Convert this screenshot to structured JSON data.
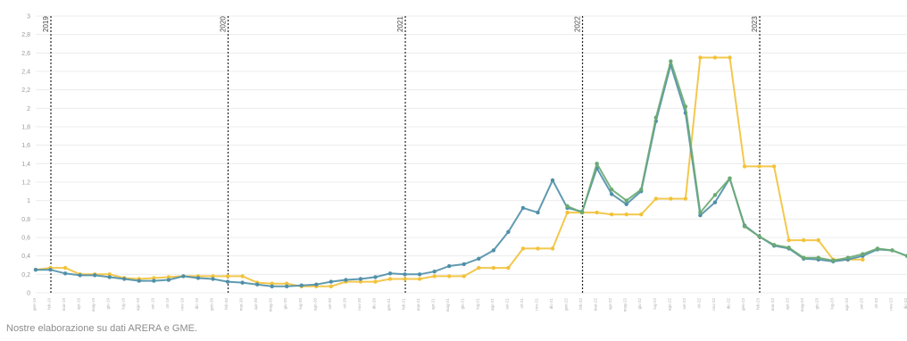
{
  "source_note": "Nostre elaborazione su dati ARERA e GME.",
  "colors": {
    "series_blue": "#4f8fa8",
    "series_green": "#6aaa73",
    "series_yellow": "#f2c23a",
    "gridline": "#ececec",
    "year_marker": "#222222"
  },
  "chart_data": {
    "type": "line",
    "title": "",
    "xlabel": "",
    "ylabel": "",
    "ylim": [
      0,
      3
    ],
    "yticks": [
      0,
      0.2,
      0.4,
      0.6,
      0.8,
      1,
      1.2,
      1.4,
      1.6,
      1.8,
      2,
      2.2,
      2.4,
      2.6,
      2.8,
      3
    ],
    "ytick_labels": [
      "0",
      "0,2",
      "0,4",
      "0,6",
      "0,8",
      "1",
      "1,2",
      "1,4",
      "1,6",
      "1,8",
      "2",
      "2,2",
      "2,4",
      "2,6",
      "2,8",
      "3"
    ],
    "grid": "horizontal",
    "legend": "none",
    "x": [
      "2019-01",
      "2019-02",
      "2019-03",
      "2019-04",
      "2019-05",
      "2019-06",
      "2019-07",
      "2019-08",
      "2019-09",
      "2019-10",
      "2019-11",
      "2019-12",
      "2020-01",
      "2020-02",
      "2020-03",
      "2020-04",
      "2020-05",
      "2020-06",
      "2020-07",
      "2020-08",
      "2020-09",
      "2020-10",
      "2020-11",
      "2020-12",
      "2021-01",
      "2021-02",
      "2021-03",
      "2021-04",
      "2021-05",
      "2021-06",
      "2021-07",
      "2021-08",
      "2021-09",
      "2021-10",
      "2021-11",
      "2021-12",
      "2022-01",
      "2022-02",
      "2022-03",
      "2022-04",
      "2022-05",
      "2022-06",
      "2022-07",
      "2022-08",
      "2022-09",
      "2022-10",
      "2022-11",
      "2022-12",
      "2023-01",
      "2023-02",
      "2023-03",
      "2023-04",
      "2023-05",
      "2023-06",
      "2023-07",
      "2023-08",
      "2023-09",
      "2023-10",
      "2023-11",
      "2023-12"
    ],
    "x_tick_labels": [
      "gen-19",
      "feb-19",
      "mar-19",
      "apr-19",
      "mag-19",
      "giu-19",
      "lug-19",
      "ago-19",
      "set-19",
      "ott-19",
      "nov-19",
      "dic-19",
      "gen-20",
      "feb-20",
      "mar-20",
      "apr-20",
      "mag-20",
      "giu-20",
      "lug-20",
      "ago-20",
      "set-20",
      "ott-20",
      "nov-20",
      "dic-20",
      "gen-21",
      "feb-21",
      "mar-21",
      "apr-21",
      "mag-21",
      "giu-21",
      "lug-21",
      "ago-21",
      "set-21",
      "ott-21",
      "nov-21",
      "dic-21",
      "gen-22",
      "feb-22",
      "mar-22",
      "apr-22",
      "mag-22",
      "giu-22",
      "lug-22",
      "ago-22",
      "set-22",
      "ott-22",
      "nov-22",
      "dic-22",
      "gen-23",
      "feb-23",
      "mar-23",
      "apr-23",
      "mag-23",
      "giu-23",
      "lug-23",
      "ago-23",
      "set-23",
      "ott-23",
      "nov-23",
      "dic-23"
    ],
    "year_markers": [
      {
        "label": "2019",
        "x": "2019-01"
      },
      {
        "label": "2020",
        "x": "2020-01"
      },
      {
        "label": "2021",
        "x": "2021-01"
      },
      {
        "label": "2022",
        "x": "2022-01"
      },
      {
        "label": "2023",
        "x": "2023-01"
      }
    ],
    "series": [
      {
        "color": "#f2c23a",
        "values": [
          0.25,
          0.27,
          0.27,
          0.2,
          0.2,
          0.2,
          0.16,
          0.15,
          0.16,
          0.17,
          0.18,
          0.18,
          0.18,
          0.18,
          0.18,
          0.11,
          0.1,
          0.1,
          0.07,
          0.07,
          0.07,
          0.12,
          0.12,
          0.12,
          0.15,
          0.15,
          0.15,
          0.18,
          0.18,
          0.18,
          0.27,
          0.27,
          0.27,
          0.48,
          0.48,
          0.48,
          0.87,
          0.87,
          0.87,
          0.85,
          0.85,
          0.85,
          1.02,
          1.02,
          1.02,
          2.55,
          2.55,
          2.55,
          1.37,
          1.37,
          1.37,
          0.57,
          0.57,
          0.57,
          0.36,
          0.36,
          0.36,
          null,
          null,
          null
        ]
      },
      {
        "color": "#4f8fa8",
        "values": [
          0.25,
          0.25,
          0.21,
          0.19,
          0.19,
          0.17,
          0.15,
          0.13,
          0.13,
          0.14,
          0.18,
          0.16,
          0.15,
          0.12,
          0.11,
          0.09,
          0.07,
          0.07,
          0.08,
          0.09,
          0.12,
          0.14,
          0.15,
          0.17,
          0.21,
          0.2,
          0.2,
          0.23,
          0.29,
          0.31,
          0.37,
          0.46,
          0.66,
          0.92,
          0.87,
          1.22,
          0.92,
          0.88,
          1.35,
          1.07,
          0.96,
          1.1,
          1.86,
          2.47,
          1.95,
          0.84,
          0.98,
          1.24,
          0.73,
          0.61,
          0.51,
          0.48,
          0.37,
          0.36,
          0.34,
          0.36,
          0.4,
          0.47,
          0.46,
          0.4
        ]
      },
      {
        "color": "#6aaa73",
        "values": [
          null,
          null,
          null,
          null,
          null,
          null,
          null,
          null,
          null,
          null,
          null,
          null,
          null,
          null,
          null,
          null,
          null,
          null,
          null,
          null,
          null,
          null,
          null,
          null,
          null,
          null,
          null,
          null,
          null,
          null,
          null,
          null,
          null,
          null,
          null,
          null,
          0.94,
          0.87,
          1.4,
          1.12,
          1.0,
          1.12,
          1.9,
          2.51,
          2.02,
          0.87,
          1.06,
          1.24,
          0.72,
          0.61,
          0.52,
          0.49,
          0.38,
          0.38,
          0.35,
          0.38,
          0.42,
          0.48,
          0.46,
          0.4
        ]
      }
    ]
  }
}
